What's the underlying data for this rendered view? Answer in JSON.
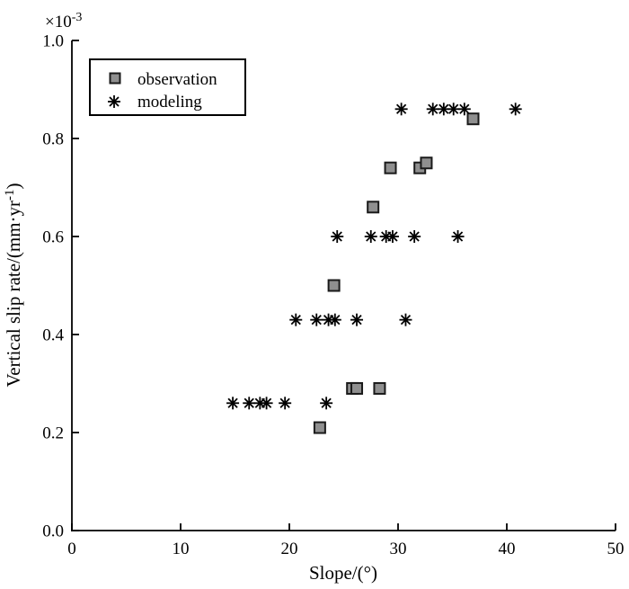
{
  "figure": {
    "background": "#ffffff",
    "axis_color": "#000000"
  },
  "legend": {
    "items": [
      {
        "label": "observation",
        "marker": "square-icon"
      },
      {
        "label": "modeling",
        "marker": "asterisk-icon"
      }
    ]
  },
  "chart_data": {
    "type": "scatter",
    "title": "",
    "xlabel": "Slope/(°)",
    "ylabel": "Vertical slip rate/(mm·yr⁻¹)",
    "ylabel_parts": {
      "pre": "Vertical slip rate/(mm·yr",
      "sup": "-1",
      "post": ")"
    },
    "y_multiplier_parts": {
      "base": "×10",
      "exp": "-3"
    },
    "xlim": [
      0,
      50
    ],
    "ylim": [
      0.0,
      1.0
    ],
    "x_ticks": [
      0,
      10,
      20,
      30,
      40,
      50
    ],
    "x_tick_labels": [
      "0",
      "10",
      "20",
      "30",
      "40",
      "50"
    ],
    "y_ticks": [
      0.0,
      0.2,
      0.4,
      0.6,
      0.8,
      1.0
    ],
    "y_tick_labels": [
      "0.0",
      "0.2",
      "0.4",
      "0.6",
      "0.8",
      "1.0"
    ],
    "grid": false,
    "legend_position": "top-left-inside",
    "series": [
      {
        "name": "observation",
        "marker": "square",
        "marker_fill": "#8f8f8f",
        "marker_edge": "#1a1a1a",
        "points": [
          [
            22.8,
            0.21
          ],
          [
            25.8,
            0.29
          ],
          [
            26.2,
            0.29
          ],
          [
            28.3,
            0.29
          ],
          [
            24.1,
            0.5
          ],
          [
            27.7,
            0.66
          ],
          [
            29.3,
            0.74
          ],
          [
            32.0,
            0.74
          ],
          [
            32.6,
            0.75
          ],
          [
            36.9,
            0.84
          ]
        ]
      },
      {
        "name": "modeling",
        "marker": "asterisk",
        "marker_color": "#000000",
        "points": [
          [
            14.8,
            0.26
          ],
          [
            16.3,
            0.26
          ],
          [
            17.3,
            0.26
          ],
          [
            17.9,
            0.26
          ],
          [
            19.6,
            0.26
          ],
          [
            23.4,
            0.26
          ],
          [
            20.6,
            0.43
          ],
          [
            22.5,
            0.43
          ],
          [
            23.6,
            0.43
          ],
          [
            24.2,
            0.43
          ],
          [
            26.2,
            0.43
          ],
          [
            30.7,
            0.43
          ],
          [
            24.4,
            0.6
          ],
          [
            27.5,
            0.6
          ],
          [
            28.9,
            0.6
          ],
          [
            29.5,
            0.6
          ],
          [
            31.5,
            0.6
          ],
          [
            35.5,
            0.6
          ],
          [
            30.3,
            0.86
          ],
          [
            33.2,
            0.86
          ],
          [
            34.2,
            0.86
          ],
          [
            35.1,
            0.86
          ],
          [
            36.1,
            0.86
          ],
          [
            40.8,
            0.86
          ]
        ]
      }
    ]
  }
}
